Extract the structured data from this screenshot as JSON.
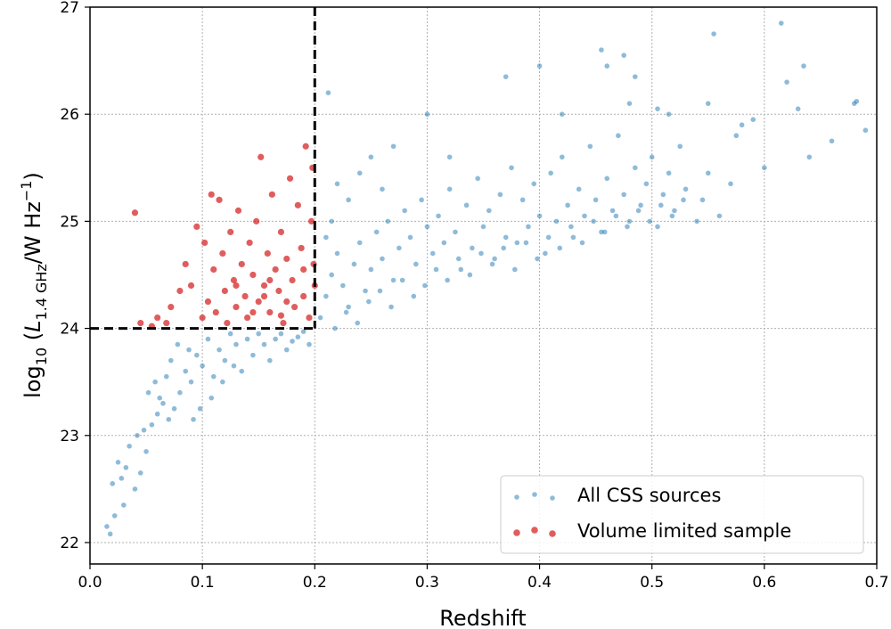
{
  "chart_data": {
    "type": "scatter",
    "title": "",
    "xlabel": "Redshift",
    "ylabel": {
      "prefix": "log",
      "log_base": "10",
      "open": " (",
      "var": "L",
      "sub": "1.4 GHz",
      "unit": "/W Hz",
      "exp": "−1",
      "close": ")"
    },
    "xlim": [
      0.0,
      0.7
    ],
    "ylim": [
      21.8,
      27.0
    ],
    "xticks": [
      0.0,
      0.1,
      0.2,
      0.3,
      0.4,
      0.5,
      0.6,
      0.7
    ],
    "xtick_labels": [
      "0.0",
      "0.1",
      "0.2",
      "0.3",
      "0.4",
      "0.5",
      "0.6",
      "0.7"
    ],
    "yticks": [
      22,
      23,
      24,
      25,
      26,
      27
    ],
    "ytick_labels": [
      "22",
      "23",
      "24",
      "25",
      "26",
      "27"
    ],
    "grid": true,
    "legend_position": "lower-right",
    "cuts": {
      "redshift_max": 0.2,
      "log_luminosity_min": 24.0
    },
    "series": [
      {
        "name": "All CSS sources",
        "color": "#1f77b4",
        "points": [
          [
            0.015,
            22.15
          ],
          [
            0.018,
            22.08
          ],
          [
            0.022,
            22.25
          ],
          [
            0.03,
            22.35
          ],
          [
            0.02,
            22.55
          ],
          [
            0.028,
            22.6
          ],
          [
            0.032,
            22.7
          ],
          [
            0.025,
            22.75
          ],
          [
            0.04,
            22.5
          ],
          [
            0.045,
            22.65
          ],
          [
            0.05,
            22.85
          ],
          [
            0.035,
            22.9
          ],
          [
            0.042,
            23.0
          ],
          [
            0.055,
            23.1
          ],
          [
            0.048,
            23.05
          ],
          [
            0.06,
            23.2
          ],
          [
            0.065,
            23.3
          ],
          [
            0.052,
            23.4
          ],
          [
            0.07,
            23.15
          ],
          [
            0.075,
            23.25
          ],
          [
            0.058,
            23.5
          ],
          [
            0.068,
            23.55
          ],
          [
            0.08,
            23.4
          ],
          [
            0.085,
            23.6
          ],
          [
            0.072,
            23.7
          ],
          [
            0.09,
            23.5
          ],
          [
            0.095,
            23.75
          ],
          [
            0.062,
            23.35
          ],
          [
            0.078,
            23.85
          ],
          [
            0.088,
            23.8
          ],
          [
            0.1,
            23.65
          ],
          [
            0.105,
            23.9
          ],
          [
            0.11,
            23.55
          ],
          [
            0.115,
            23.8
          ],
          [
            0.12,
            23.7
          ],
          [
            0.125,
            23.95
          ],
          [
            0.13,
            23.85
          ],
          [
            0.135,
            23.6
          ],
          [
            0.14,
            23.9
          ],
          [
            0.145,
            23.75
          ],
          [
            0.15,
            23.95
          ],
          [
            0.155,
            23.85
          ],
          [
            0.16,
            23.7
          ],
          [
            0.165,
            23.9
          ],
          [
            0.17,
            23.95
          ],
          [
            0.175,
            23.8
          ],
          [
            0.18,
            23.88
          ],
          [
            0.185,
            23.92
          ],
          [
            0.19,
            23.97
          ],
          [
            0.195,
            23.85
          ],
          [
            0.098,
            23.25
          ],
          [
            0.108,
            23.35
          ],
          [
            0.118,
            23.5
          ],
          [
            0.128,
            23.65
          ],
          [
            0.092,
            23.15
          ],
          [
            0.205,
            24.1
          ],
          [
            0.21,
            24.3
          ],
          [
            0.215,
            24.5
          ],
          [
            0.22,
            24.7
          ],
          [
            0.225,
            24.4
          ],
          [
            0.23,
            24.2
          ],
          [
            0.235,
            24.6
          ],
          [
            0.24,
            24.8
          ],
          [
            0.245,
            24.35
          ],
          [
            0.25,
            24.55
          ],
          [
            0.255,
            24.9
          ],
          [
            0.26,
            24.65
          ],
          [
            0.265,
            25.0
          ],
          [
            0.27,
            24.45
          ],
          [
            0.275,
            24.75
          ],
          [
            0.28,
            25.1
          ],
          [
            0.285,
            24.85
          ],
          [
            0.29,
            24.6
          ],
          [
            0.295,
            25.2
          ],
          [
            0.3,
            24.95
          ],
          [
            0.305,
            24.7
          ],
          [
            0.31,
            25.05
          ],
          [
            0.315,
            24.8
          ],
          [
            0.32,
            25.3
          ],
          [
            0.325,
            24.9
          ],
          [
            0.33,
            24.55
          ],
          [
            0.335,
            25.15
          ],
          [
            0.34,
            24.75
          ],
          [
            0.345,
            25.4
          ],
          [
            0.35,
            24.95
          ],
          [
            0.355,
            25.1
          ],
          [
            0.36,
            24.65
          ],
          [
            0.365,
            25.25
          ],
          [
            0.37,
            24.85
          ],
          [
            0.375,
            25.5
          ],
          [
            0.38,
            24.8
          ],
          [
            0.385,
            25.2
          ],
          [
            0.39,
            24.95
          ],
          [
            0.395,
            25.35
          ],
          [
            0.4,
            25.05
          ],
          [
            0.405,
            24.7
          ],
          [
            0.41,
            25.45
          ],
          [
            0.415,
            25.0
          ],
          [
            0.42,
            25.6
          ],
          [
            0.425,
            25.15
          ],
          [
            0.43,
            24.85
          ],
          [
            0.435,
            25.3
          ],
          [
            0.44,
            25.05
          ],
          [
            0.445,
            25.7
          ],
          [
            0.45,
            25.2
          ],
          [
            0.455,
            24.9
          ],
          [
            0.46,
            25.4
          ],
          [
            0.465,
            25.1
          ],
          [
            0.47,
            25.8
          ],
          [
            0.475,
            25.25
          ],
          [
            0.48,
            25.0
          ],
          [
            0.485,
            25.5
          ],
          [
            0.49,
            25.15
          ],
          [
            0.495,
            25.35
          ],
          [
            0.5,
            25.6
          ],
          [
            0.505,
            24.95
          ],
          [
            0.51,
            25.25
          ],
          [
            0.515,
            25.45
          ],
          [
            0.52,
            25.1
          ],
          [
            0.525,
            25.7
          ],
          [
            0.53,
            25.3
          ],
          [
            0.54,
            25.0
          ],
          [
            0.545,
            25.2
          ],
          [
            0.55,
            25.45
          ],
          [
            0.56,
            25.05
          ],
          [
            0.57,
            25.35
          ],
          [
            0.575,
            25.8
          ],
          [
            0.58,
            25.9
          ],
          [
            0.6,
            25.5
          ],
          [
            0.62,
            26.3
          ],
          [
            0.63,
            26.05
          ],
          [
            0.64,
            25.6
          ],
          [
            0.66,
            25.75
          ],
          [
            0.68,
            26.1
          ],
          [
            0.69,
            25.85
          ],
          [
            0.212,
            26.2
          ],
          [
            0.3,
            26.0
          ],
          [
            0.32,
            25.6
          ],
          [
            0.37,
            26.35
          ],
          [
            0.4,
            26.45
          ],
          [
            0.42,
            26.0
          ],
          [
            0.455,
            26.6
          ],
          [
            0.46,
            26.45
          ],
          [
            0.475,
            26.55
          ],
          [
            0.485,
            26.35
          ],
          [
            0.48,
            26.1
          ],
          [
            0.505,
            26.05
          ],
          [
            0.515,
            26.0
          ],
          [
            0.55,
            26.1
          ],
          [
            0.555,
            26.75
          ],
          [
            0.615,
            26.85
          ],
          [
            0.635,
            26.45
          ],
          [
            0.682,
            26.12
          ],
          [
            0.59,
            25.95
          ],
          [
            0.215,
            25.0
          ],
          [
            0.22,
            25.35
          ],
          [
            0.23,
            25.2
          ],
          [
            0.24,
            25.45
          ],
          [
            0.25,
            25.6
          ],
          [
            0.26,
            25.3
          ],
          [
            0.27,
            25.7
          ],
          [
            0.21,
            24.85
          ],
          [
            0.218,
            24.0
          ],
          [
            0.228,
            24.15
          ],
          [
            0.238,
            24.05
          ],
          [
            0.248,
            24.25
          ],
          [
            0.258,
            24.35
          ],
          [
            0.268,
            24.2
          ],
          [
            0.278,
            24.45
          ],
          [
            0.288,
            24.3
          ],
          [
            0.298,
            24.4
          ],
          [
            0.308,
            24.55
          ],
          [
            0.318,
            24.45
          ],
          [
            0.328,
            24.65
          ],
          [
            0.338,
            24.5
          ],
          [
            0.348,
            24.7
          ],
          [
            0.358,
            24.6
          ],
          [
            0.368,
            24.75
          ],
          [
            0.378,
            24.55
          ],
          [
            0.388,
            24.8
          ],
          [
            0.398,
            24.65
          ],
          [
            0.408,
            24.85
          ],
          [
            0.418,
            24.75
          ],
          [
            0.428,
            24.95
          ],
          [
            0.438,
            24.8
          ],
          [
            0.448,
            25.0
          ],
          [
            0.458,
            24.9
          ],
          [
            0.468,
            25.05
          ],
          [
            0.478,
            24.95
          ],
          [
            0.488,
            25.1
          ],
          [
            0.498,
            25.0
          ],
          [
            0.508,
            25.15
          ],
          [
            0.518,
            25.05
          ],
          [
            0.528,
            25.2
          ]
        ]
      },
      {
        "name": "Volume limited sample",
        "color": "#d62728",
        "points": [
          [
            0.04,
            25.08
          ],
          [
            0.045,
            24.05
          ],
          [
            0.055,
            24.02
          ],
          [
            0.06,
            24.1
          ],
          [
            0.068,
            24.05
          ],
          [
            0.072,
            24.2
          ],
          [
            0.08,
            24.35
          ],
          [
            0.085,
            24.6
          ],
          [
            0.09,
            24.4
          ],
          [
            0.095,
            24.95
          ],
          [
            0.1,
            24.1
          ],
          [
            0.102,
            24.8
          ],
          [
            0.105,
            24.25
          ],
          [
            0.108,
            25.25
          ],
          [
            0.11,
            24.55
          ],
          [
            0.112,
            24.15
          ],
          [
            0.115,
            25.2
          ],
          [
            0.118,
            24.7
          ],
          [
            0.12,
            24.35
          ],
          [
            0.122,
            24.05
          ],
          [
            0.125,
            24.9
          ],
          [
            0.128,
            24.45
          ],
          [
            0.13,
            24.2
          ],
          [
            0.132,
            25.1
          ],
          [
            0.135,
            24.6
          ],
          [
            0.138,
            24.3
          ],
          [
            0.14,
            24.1
          ],
          [
            0.142,
            24.8
          ],
          [
            0.145,
            24.5
          ],
          [
            0.148,
            25.0
          ],
          [
            0.15,
            24.25
          ],
          [
            0.152,
            25.6
          ],
          [
            0.155,
            24.4
          ],
          [
            0.158,
            24.7
          ],
          [
            0.16,
            24.15
          ],
          [
            0.162,
            25.25
          ],
          [
            0.165,
            24.55
          ],
          [
            0.168,
            24.35
          ],
          [
            0.17,
            24.9
          ],
          [
            0.172,
            24.05
          ],
          [
            0.175,
            24.65
          ],
          [
            0.178,
            25.4
          ],
          [
            0.18,
            24.45
          ],
          [
            0.182,
            24.2
          ],
          [
            0.185,
            25.15
          ],
          [
            0.188,
            24.75
          ],
          [
            0.19,
            24.3
          ],
          [
            0.192,
            25.7
          ],
          [
            0.195,
            24.1
          ],
          [
            0.197,
            25.0
          ],
          [
            0.199,
            24.6
          ],
          [
            0.198,
            25.5
          ],
          [
            0.2,
            24.4
          ],
          [
            0.13,
            24.4
          ],
          [
            0.145,
            24.15
          ],
          [
            0.16,
            24.45
          ],
          [
            0.175,
            24.25
          ],
          [
            0.19,
            24.55
          ],
          [
            0.155,
            24.3
          ],
          [
            0.17,
            24.12
          ]
        ]
      }
    ]
  }
}
